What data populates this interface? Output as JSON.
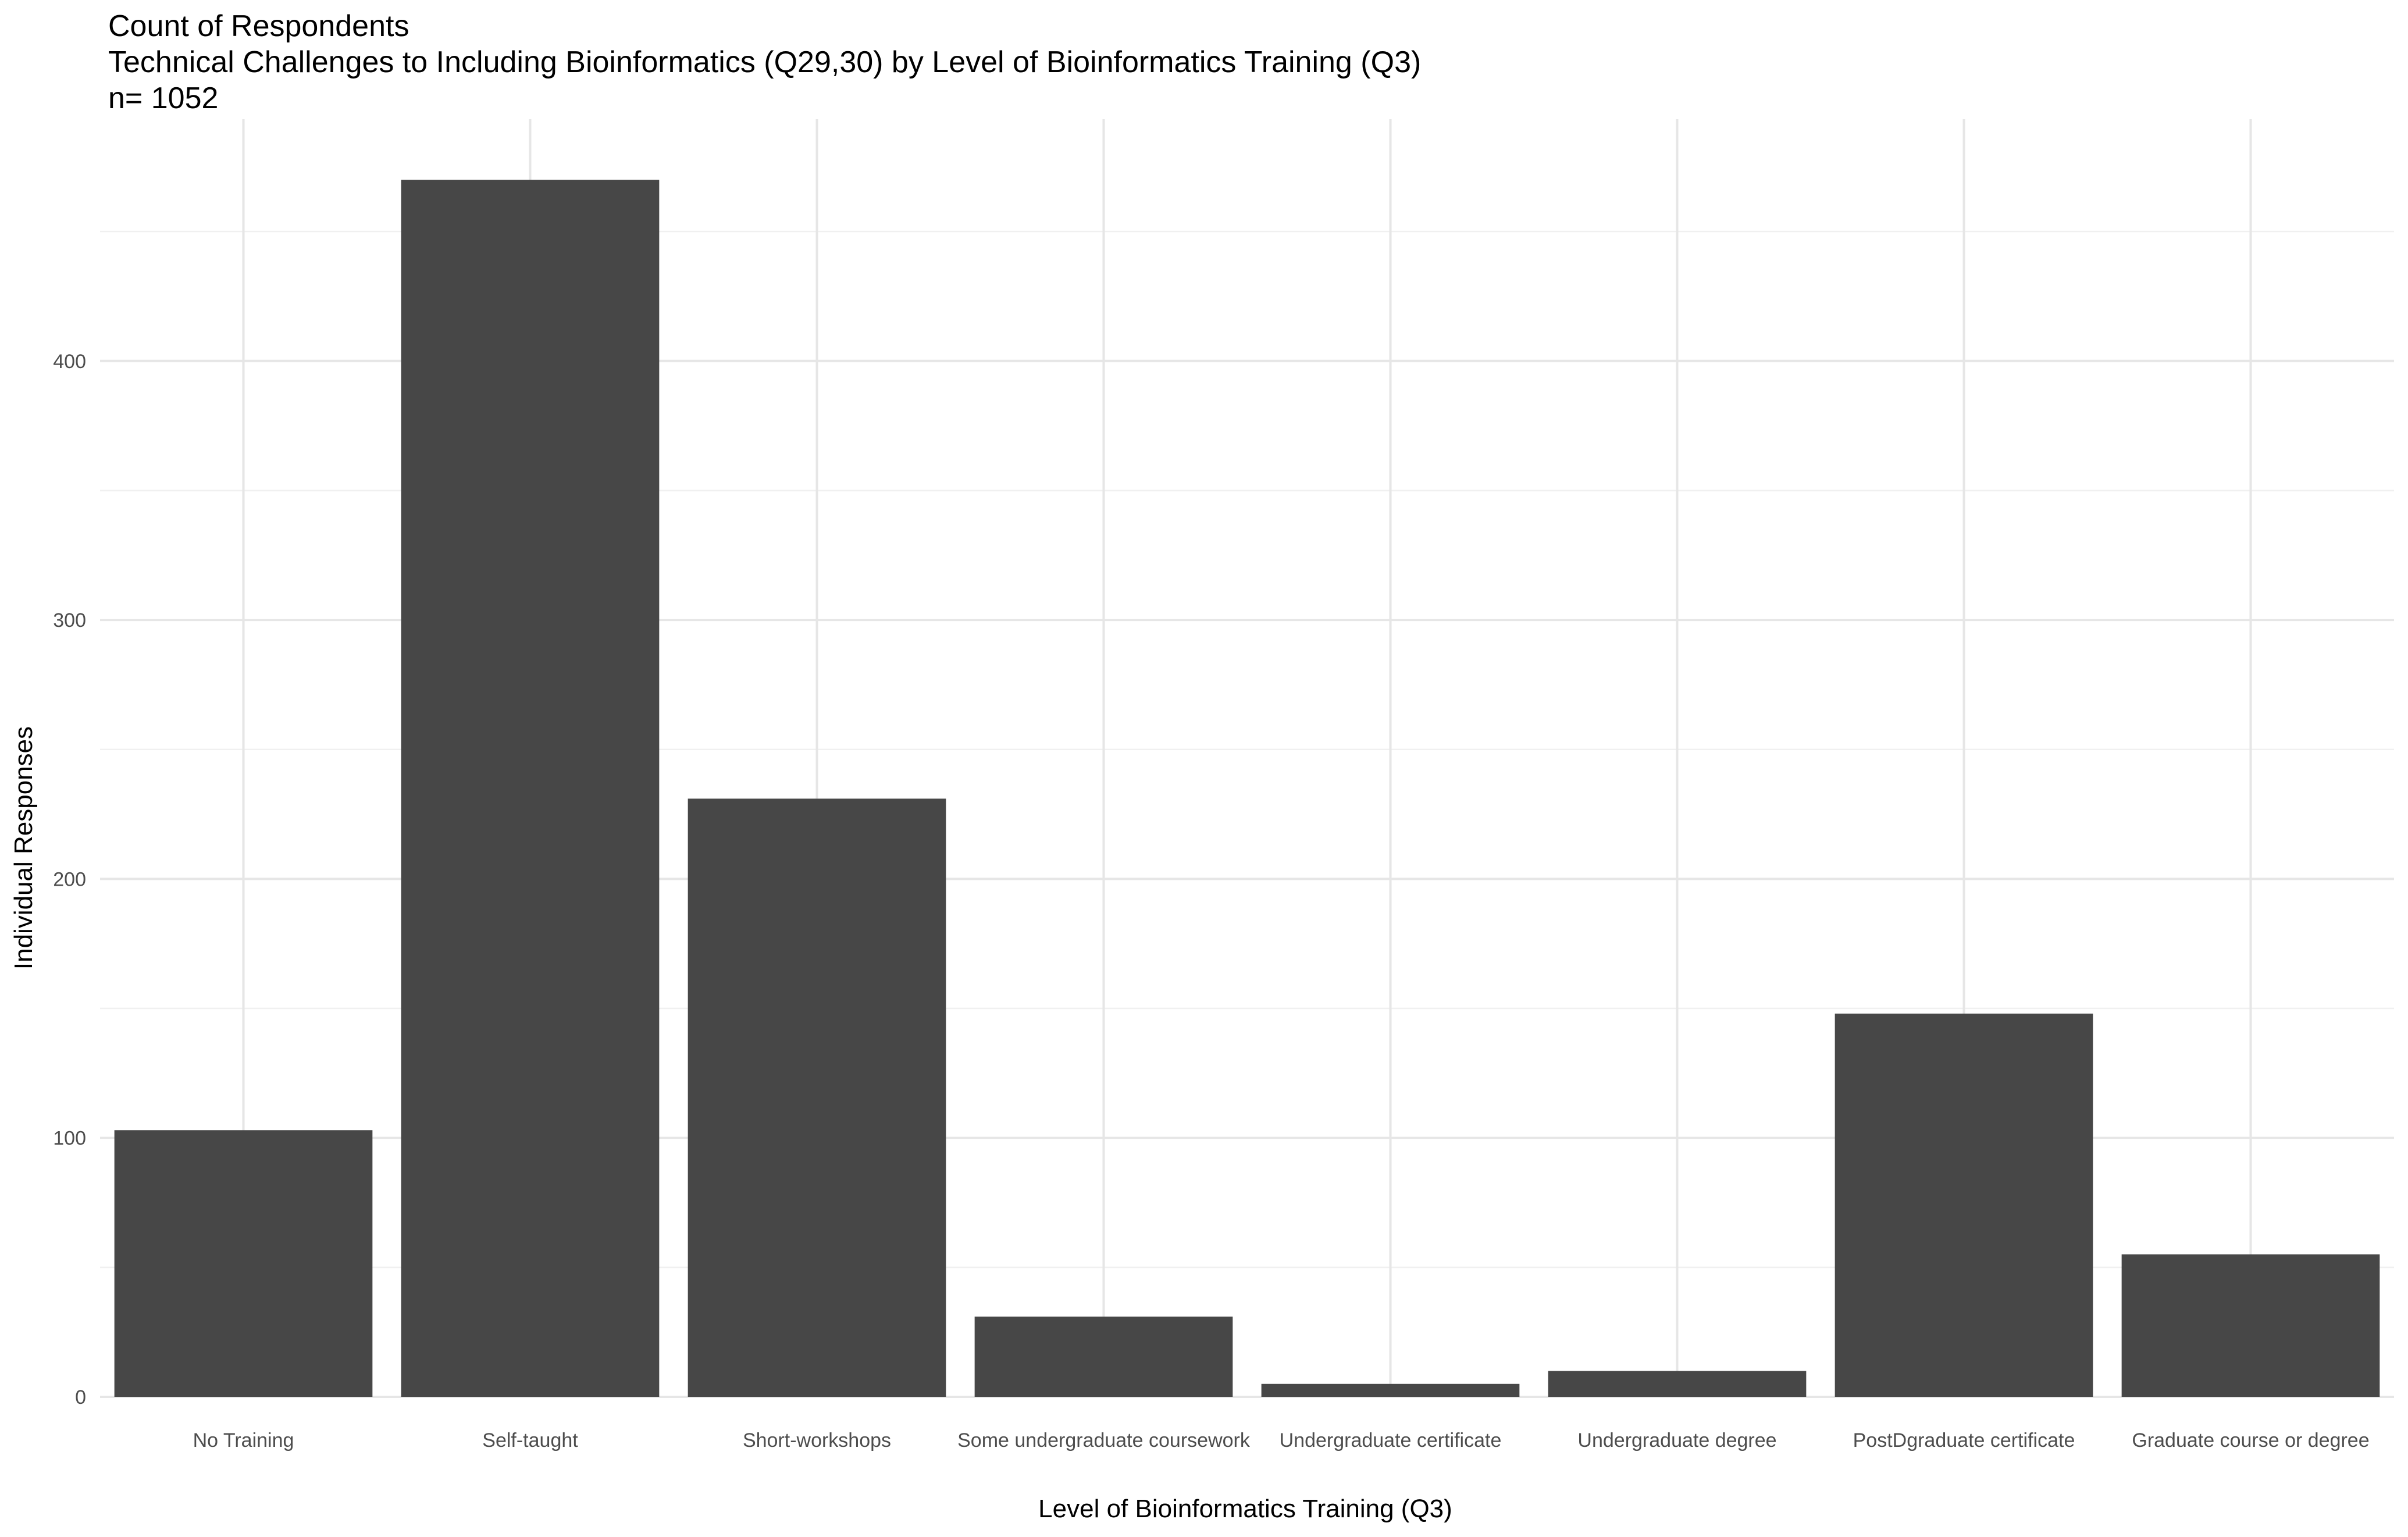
{
  "chart_data": {
    "type": "bar",
    "title": "Count of Respondents",
    "subtitle": "Technical Challenges to Including Bioinformatics (Q29,30) by Level of Bioinformatics Training (Q3)",
    "caption": "n= 1052",
    "xlabel": "Level of Bioinformatics Training (Q3)",
    "ylabel": "Individual Responses",
    "categories": [
      "No Training",
      "Self-taught",
      "Short-workshops",
      "Some undergraduate coursework",
      "Undergraduate certificate",
      "Undergraduate degree",
      "PostDgraduate certificate",
      "Graduate course or degree"
    ],
    "values": [
      103,
      470,
      231,
      31,
      5,
      10,
      148,
      55
    ],
    "ylim": [
      0,
      490
    ],
    "yticks": [
      0,
      100,
      200,
      300,
      400
    ],
    "grid": true,
    "legend": "none",
    "bar_color": "#474747"
  }
}
